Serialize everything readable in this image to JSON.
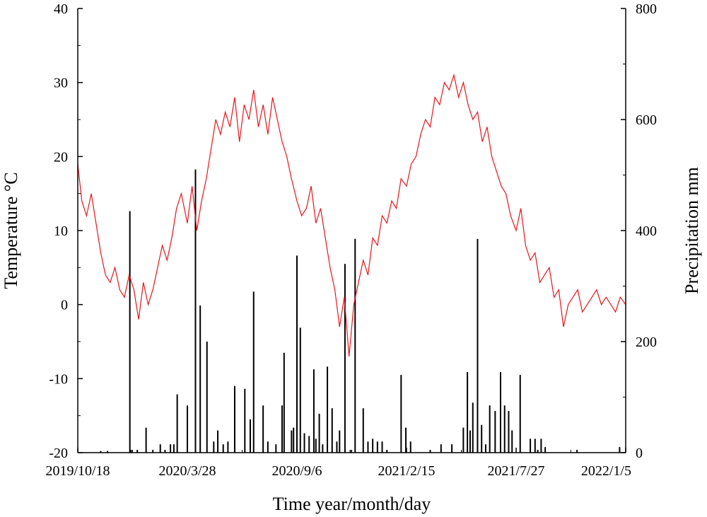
{
  "chart_data": {
    "type": "line",
    "title": "",
    "xlabel": "Time year/month/day",
    "ylabel_left": "Temperature °C",
    "ylabel_right": "Precipitation mm",
    "x_range": [
      "2019-10-18",
      "2022-01-05"
    ],
    "x_tick_labels": [
      "2019/10/18",
      "2020/3/28",
      "2020/9/6",
      "2021/2/15",
      "2021/7/27",
      "2022/1/5"
    ],
    "ylim_left": [
      -20,
      40
    ],
    "y_ticks_left": [
      "40",
      "30",
      "20",
      "10",
      "0",
      "-10",
      "-20"
    ],
    "ylim_right": [
      0,
      800
    ],
    "y_ticks_right": [
      "800",
      "600",
      "400",
      "200",
      "0"
    ],
    "grid": false,
    "colors": {
      "temperature": "#e8141b",
      "precipitation": "#000000",
      "axes": "#000000"
    },
    "series": [
      {
        "axis": "left",
        "style": "line",
        "color": "#e8141b",
        "x": [
          "2019-10-18",
          "2019-10-24",
          "2019-10-31",
          "2019-11-07",
          "2019-11-14",
          "2019-11-21",
          "2019-11-28",
          "2019-12-05",
          "2019-12-12",
          "2019-12-19",
          "2019-12-26",
          "2020-01-02",
          "2020-01-09",
          "2020-01-16",
          "2020-01-23",
          "2020-01-30",
          "2020-02-06",
          "2020-02-13",
          "2020-02-20",
          "2020-02-27",
          "2020-03-05",
          "2020-03-12",
          "2020-03-19",
          "2020-03-28",
          "2020-04-04",
          "2020-04-11",
          "2020-04-18",
          "2020-04-25",
          "2020-05-02",
          "2020-05-09",
          "2020-05-16",
          "2020-05-23",
          "2020-05-30",
          "2020-06-06",
          "2020-06-13",
          "2020-06-20",
          "2020-06-27",
          "2020-07-04",
          "2020-07-11",
          "2020-07-18",
          "2020-07-25",
          "2020-08-01",
          "2020-08-08",
          "2020-08-15",
          "2020-08-22",
          "2020-08-29",
          "2020-09-06",
          "2020-09-13",
          "2020-09-20",
          "2020-09-27",
          "2020-10-04",
          "2020-10-11",
          "2020-10-18",
          "2020-10-25",
          "2020-11-01",
          "2020-11-08",
          "2020-11-15",
          "2020-11-22",
          "2020-11-29",
          "2020-12-06",
          "2020-12-13",
          "2020-12-20",
          "2020-12-27",
          "2021-01-03",
          "2021-01-10",
          "2021-01-17",
          "2021-01-24",
          "2021-01-31",
          "2021-02-07",
          "2021-02-15",
          "2021-02-22",
          "2021-03-01",
          "2021-03-08",
          "2021-03-15",
          "2021-03-22",
          "2021-03-29",
          "2021-04-05",
          "2021-04-12",
          "2021-04-19",
          "2021-04-26",
          "2021-05-03",
          "2021-05-10",
          "2021-05-17",
          "2021-05-24",
          "2021-05-31",
          "2021-06-07",
          "2021-06-14",
          "2021-06-21",
          "2021-06-28",
          "2021-07-05",
          "2021-07-12",
          "2021-07-19",
          "2021-07-27",
          "2021-08-03",
          "2021-08-10",
          "2021-08-17",
          "2021-08-24",
          "2021-08-31",
          "2021-09-07",
          "2021-09-14",
          "2021-09-21",
          "2021-09-28",
          "2021-10-05",
          "2021-10-12",
          "2021-10-19",
          "2021-10-26",
          "2021-11-02",
          "2021-11-09",
          "2021-11-16",
          "2021-11-23",
          "2021-11-30",
          "2021-12-07",
          "2021-12-14",
          "2021-12-21",
          "2021-12-28",
          "2022-01-05"
        ],
        "values": [
          19,
          14,
          12,
          15,
          11,
          7,
          4,
          3,
          5,
          2,
          1,
          4,
          2,
          -2,
          3,
          0,
          2,
          5,
          8,
          6,
          9,
          13,
          15,
          11,
          16,
          10,
          14,
          17,
          21,
          25,
          23,
          26,
          24,
          28,
          22,
          27,
          25,
          29,
          24,
          27,
          23,
          28,
          25,
          22,
          20,
          17,
          14,
          12,
          13,
          16,
          11,
          13,
          9,
          5,
          2,
          -3,
          1,
          -7,
          0,
          3,
          6,
          4,
          9,
          8,
          12,
          11,
          14,
          13,
          17,
          16,
          19,
          20,
          23,
          25,
          24,
          28,
          27,
          30,
          29,
          31,
          28,
          30,
          27,
          25,
          26,
          22,
          24,
          20,
          18,
          16,
          15,
          12,
          10,
          13,
          8,
          6,
          7,
          3,
          4,
          5,
          1,
          2,
          -3,
          0,
          1,
          2,
          -1,
          0,
          1,
          2,
          0,
          1,
          0,
          -1,
          1,
          0
        ],
        "note": "values approximate weekly temperature readings"
      },
      {
        "axis": "right",
        "style": "bars",
        "color": "#000000",
        "x": [
          "2019-11-21",
          "2019-12-01",
          "2020-01-03",
          "2020-01-05",
          "2020-01-14",
          "2020-01-27",
          "2020-02-06",
          "2020-02-17",
          "2020-02-24",
          "2020-03-03",
          "2020-03-08",
          "2020-03-13",
          "2020-03-28",
          "2020-04-09",
          "2020-04-16",
          "2020-04-26",
          "2020-05-06",
          "2020-05-12",
          "2020-05-20",
          "2020-05-27",
          "2020-06-06",
          "2020-06-21",
          "2020-06-29",
          "2020-07-04",
          "2020-07-18",
          "2020-07-25",
          "2020-08-06",
          "2020-08-15",
          "2020-08-18",
          "2020-08-29",
          "2020-09-01",
          "2020-09-06",
          "2020-09-11",
          "2020-09-17",
          "2020-09-24",
          "2020-10-01",
          "2020-10-04",
          "2020-10-09",
          "2020-10-14",
          "2020-10-21",
          "2020-10-28",
          "2020-11-04",
          "2020-11-08",
          "2020-11-16",
          "2020-11-24",
          "2020-12-01",
          "2020-12-13",
          "2020-12-20",
          "2020-12-27",
          "2021-01-03",
          "2021-01-10",
          "2021-01-17",
          "2021-02-07",
          "2021-02-14",
          "2021-02-21",
          "2021-03-22",
          "2021-04-07",
          "2021-04-23",
          "2021-05-10",
          "2021-05-16",
          "2021-05-20",
          "2021-05-24",
          "2021-05-31",
          "2021-06-06",
          "2021-06-12",
          "2021-06-18",
          "2021-06-26",
          "2021-07-04",
          "2021-07-10",
          "2021-07-16",
          "2021-07-21",
          "2021-08-02",
          "2021-08-17",
          "2021-08-24",
          "2021-08-28",
          "2021-09-02",
          "2021-09-08",
          "2021-10-25",
          "2021-12-27"
        ],
        "values": [
          3,
          3,
          435,
          5,
          5,
          45,
          5,
          15,
          5,
          15,
          15,
          105,
          85,
          510,
          265,
          200,
          20,
          40,
          15,
          20,
          120,
          115,
          60,
          290,
          85,
          20,
          15,
          85,
          180,
          40,
          45,
          355,
          225,
          35,
          30,
          150,
          25,
          70,
          15,
          155,
          80,
          20,
          40,
          340,
          5,
          385,
          80,
          20,
          25,
          20,
          20,
          5,
          140,
          45,
          20,
          5,
          15,
          15,
          45,
          145,
          40,
          90,
          385,
          50,
          15,
          85,
          75,
          145,
          85,
          75,
          40,
          140,
          25,
          25,
          5,
          25,
          10,
          5,
          10
        ],
        "note": "values approximate daily precipitation events"
      }
    ]
  }
}
